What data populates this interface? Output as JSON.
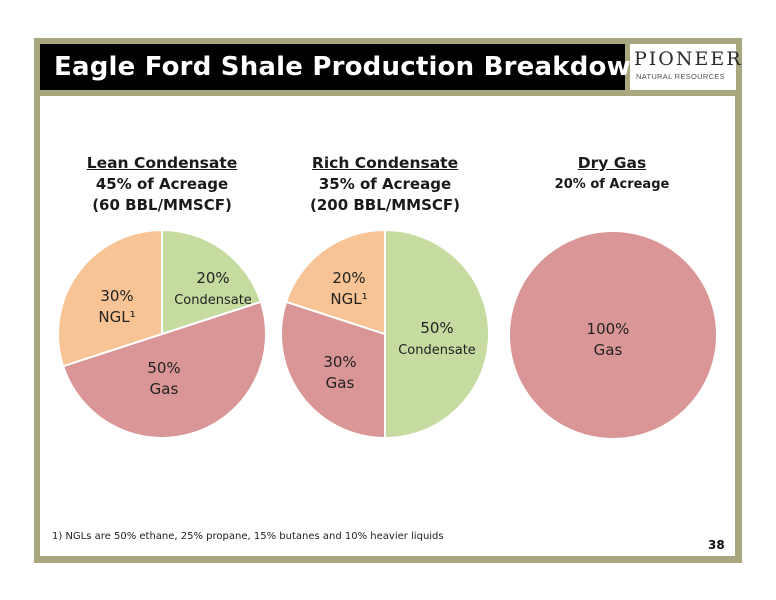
{
  "slide": {
    "title": "Eagle Ford Shale Production Breakdown",
    "logo": {
      "name": "PIONEER",
      "sub": "NATURAL RESOURCES"
    },
    "footnote": "1) NGLs are 50% ethane, 25% propane, 15% butanes and 10% heavier liquids",
    "page_number": "38"
  },
  "colors": {
    "frame": "#a8a780",
    "title_bar": "#000000",
    "condensate": "#c6dba0",
    "gas": "#da9696",
    "ngl": "#f8c495"
  },
  "chart_data": [
    {
      "type": "pie",
      "heading": "Lean Condensate",
      "line1": "45% of Acreage",
      "line2": "(60 BBL/MMSCF)",
      "slices": [
        {
          "name": "Condensate",
          "value": 20,
          "label_pct": "20%",
          "label_name": "Condensate",
          "color": "#c6dba0"
        },
        {
          "name": "Gas",
          "value": 50,
          "label_pct": "50%",
          "label_name": "Gas",
          "color": "#da9696"
        },
        {
          "name": "NGL",
          "value": 30,
          "label_pct": "30%",
          "label_name": "NGL¹",
          "color": "#f8c495"
        }
      ]
    },
    {
      "type": "pie",
      "heading": "Rich Condensate",
      "line1": "35% of Acreage",
      "line2": "(200 BBL/MMSCF)",
      "slices": [
        {
          "name": "Condensate",
          "value": 50,
          "label_pct": "50%",
          "label_name": "Condensate",
          "color": "#c6dba0"
        },
        {
          "name": "Gas",
          "value": 30,
          "label_pct": "30%",
          "label_name": "Gas",
          "color": "#da9696"
        },
        {
          "name": "NGL",
          "value": 20,
          "label_pct": "20%",
          "label_name": "NGL¹",
          "color": "#f8c495"
        }
      ]
    },
    {
      "type": "pie",
      "heading": "Dry Gas",
      "line1": "20% of Acreage",
      "line2": "",
      "slices": [
        {
          "name": "Gas",
          "value": 100,
          "label_pct": "100%",
          "label_name": "Gas",
          "color": "#da9696"
        }
      ]
    }
  ]
}
